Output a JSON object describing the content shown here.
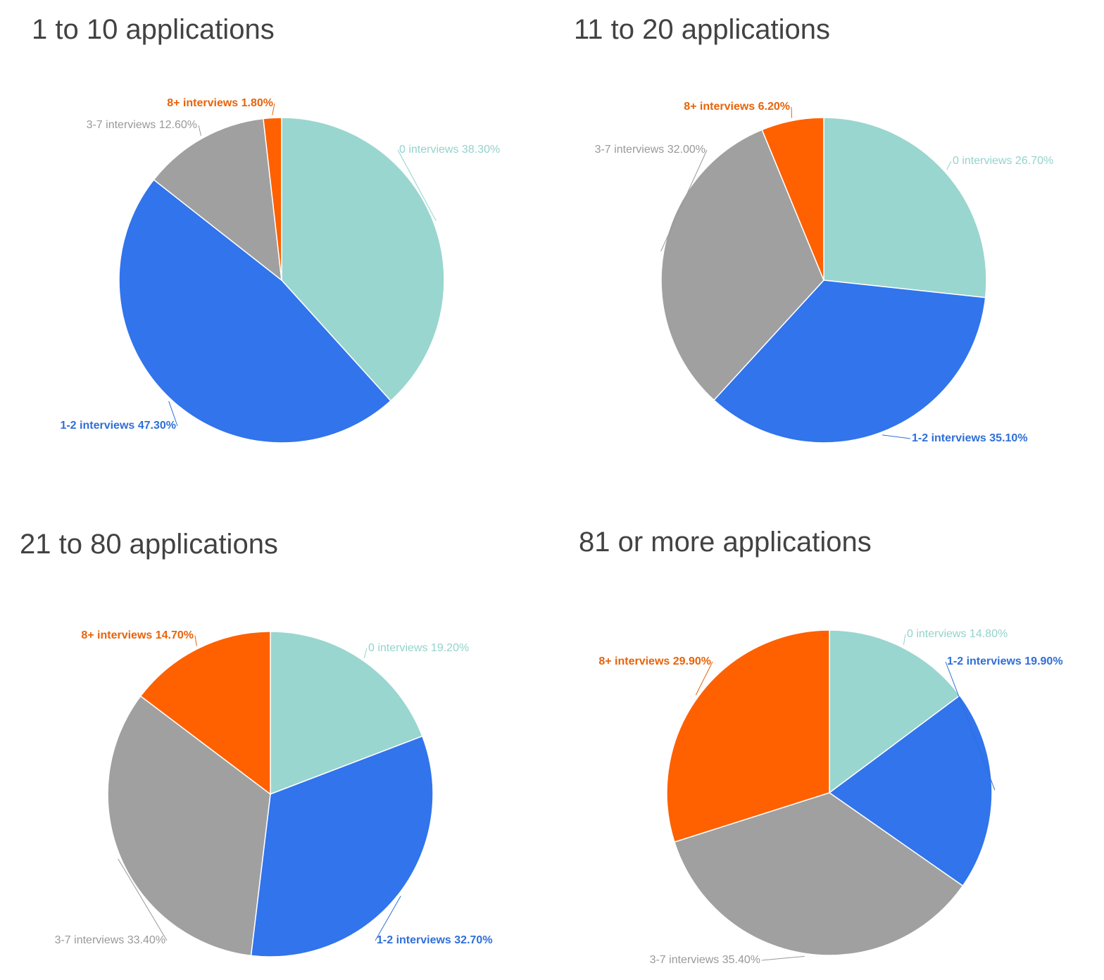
{
  "chart_data": [
    {
      "type": "pie",
      "title": "1 to 10 applications",
      "categories": [
        "0 interviews",
        "1-2 interviews",
        "3-7 interviews",
        "8+ interviews"
      ],
      "values": [
        38.3,
        47.3,
        12.6,
        1.8
      ],
      "labels": [
        "0 interviews 38.30%",
        "1-2 interviews 47.30%",
        "3-7 interviews 12.60%",
        "8+ interviews 1.80%"
      ]
    },
    {
      "type": "pie",
      "title": "11 to 20 applications",
      "categories": [
        "0 interviews",
        "1-2 interviews",
        "3-7 interviews",
        "8+ interviews"
      ],
      "values": [
        26.7,
        35.1,
        32.0,
        6.2
      ],
      "labels": [
        "0 interviews 26.70%",
        "1-2 interviews 35.10%",
        "3-7 interviews 32.00%",
        "8+ interviews 6.20%"
      ]
    },
    {
      "type": "pie",
      "title": "21 to 80 applications",
      "categories": [
        "0 interviews",
        "1-2 interviews",
        "3-7 interviews",
        "8+ interviews"
      ],
      "values": [
        19.2,
        32.7,
        33.4,
        14.7
      ],
      "labels": [
        "0 interviews 19.20%",
        "1-2 interviews 32.70%",
        "3-7 interviews 33.40%",
        "8+ interviews 14.70%"
      ]
    },
    {
      "type": "pie",
      "title": "81 or more applications",
      "categories": [
        "0 interviews",
        "1-2 interviews",
        "3-7 interviews",
        "8+ interviews"
      ],
      "values": [
        14.8,
        19.9,
        35.4,
        29.9
      ],
      "labels": [
        "0 interviews 14.80%",
        "1-2 interviews 19.90%",
        "3-7 interviews 35.40%",
        "8+ interviews 29.90%"
      ]
    }
  ],
  "colors": {
    "slices": [
      "#99d6cf",
      "#3174ec",
      "#a0a0a0",
      "#ff6000"
    ],
    "labels": [
      "#93d3cb",
      "#2f6fd8",
      "#999999",
      "#e8630a"
    ]
  }
}
